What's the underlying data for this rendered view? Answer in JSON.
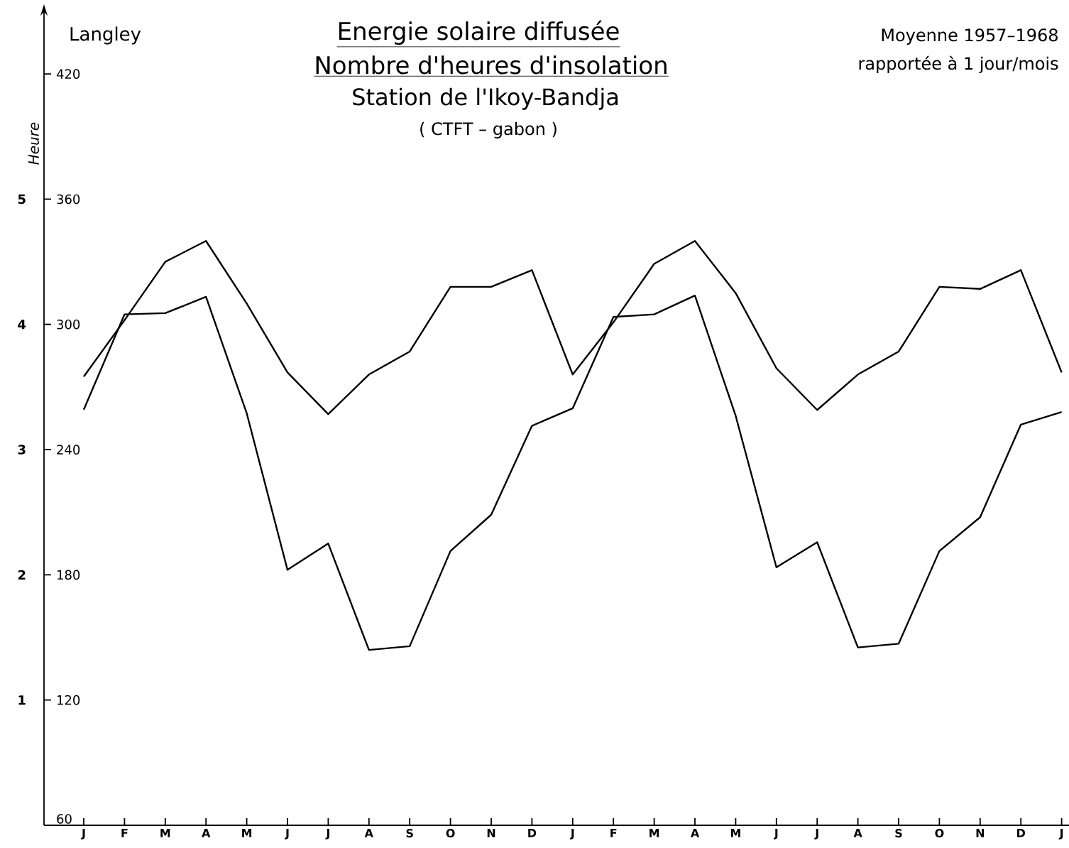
{
  "chart_data": {
    "type": "line",
    "title": "Energie solaire diffusée",
    "subtitle": "Nombre d'heures d'insolation",
    "ylabel": "Langley",
    "y2label": "Heure",
    "annotations": [
      "Station de l'Ikoy-Bandja",
      "( CTFT – gabon )",
      "Moyenne 1957–1968",
      "rapportée à 1 jour/mois"
    ],
    "categories": [
      "J",
      "F",
      "M",
      "A",
      "M",
      "J",
      "J",
      "A",
      "S",
      "O",
      "N",
      "D",
      "J",
      "F",
      "M",
      "A",
      "M",
      "J",
      "J",
      "A",
      "S",
      "O",
      "N",
      "D",
      "J"
    ],
    "series": [
      {
        "color": "#000000",
        "values": [
          275,
          302,
          330,
          340,
          310,
          277,
          257,
          276,
          287,
          318,
          318,
          326,
          276,
          301,
          329,
          340,
          315,
          279,
          259,
          276,
          287,
          318,
          317,
          326,
          277
        ]
      },
      {
        "color": "#000000",
        "axis": "y2",
        "values": [
          3.32,
          4.08,
          4.09,
          4.22,
          3.29,
          2.04,
          2.25,
          1.4,
          1.43,
          2.19,
          2.48,
          3.19,
          3.33,
          4.06,
          4.08,
          4.23,
          3.27,
          2.06,
          2.26,
          1.42,
          1.45,
          2.19,
          2.46,
          3.2,
          3.3
        ]
      }
    ],
    "ylim": [
      60,
      450
    ],
    "yticks": [
      60,
      120,
      180,
      240,
      300,
      360,
      420
    ],
    "y2lim": [
      0,
      6.5
    ],
    "y2ticks": [
      1,
      2,
      3,
      4,
      5
    ],
    "grid": false,
    "legend": false,
    "marker": "none",
    "line_style": "solid"
  }
}
